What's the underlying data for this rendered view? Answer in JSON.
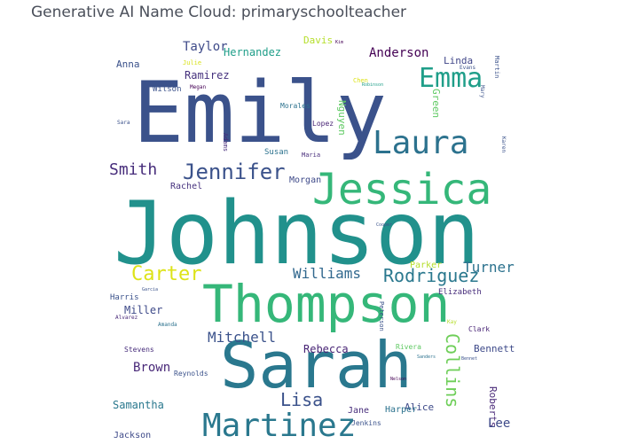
{
  "title": "Generative AI Name Cloud: primaryschoolteacher",
  "words": [
    {
      "text": "Johnson",
      "color": "#21918c"
    },
    {
      "text": "Emily",
      "color": "#3b528b"
    },
    {
      "text": "Sarah",
      "color": "#2a788e"
    },
    {
      "text": "Thompson",
      "color": "#35b779"
    },
    {
      "text": "Jessica",
      "color": "#35b779"
    },
    {
      "text": "Martinez",
      "color": "#2a788e"
    },
    {
      "text": "Laura",
      "color": "#2c728e"
    },
    {
      "text": "Emma",
      "color": "#1f9e89"
    },
    {
      "text": "Jennifer",
      "color": "#3b528b"
    },
    {
      "text": "Carter",
      "color": "#dde318"
    },
    {
      "text": "Rodriguez",
      "color": "#2a788e"
    },
    {
      "text": "Collins",
      "color": "#6ece58"
    },
    {
      "text": "Smith",
      "color": "#472d7b"
    },
    {
      "text": "Williams",
      "color": "#31688e"
    },
    {
      "text": "Mitchell",
      "color": "#3b528b"
    },
    {
      "text": "Lisa",
      "color": "#3b528b"
    },
    {
      "text": "Turner",
      "color": "#2c728e"
    },
    {
      "text": "Anderson",
      "color": "#440154"
    },
    {
      "text": "Taylor",
      "color": "#3e4a89"
    },
    {
      "text": "Hernandez",
      "color": "#1f9e89"
    },
    {
      "text": "Ramirez",
      "color": "#46327e"
    },
    {
      "text": "Brown",
      "color": "#482878"
    },
    {
      "text": "Rebecca",
      "color": "#482475"
    },
    {
      "text": "Samantha",
      "color": "#2a788e"
    },
    {
      "text": "Bennett",
      "color": "#3e4a89"
    },
    {
      "text": "Miller",
      "color": "#3e4a89"
    },
    {
      "text": "Anna",
      "color": "#3b528b"
    },
    {
      "text": "Linda",
      "color": "#404688"
    },
    {
      "text": "Davis",
      "color": "#b5de2b"
    },
    {
      "text": "Nguyen",
      "color": "#5ec962"
    },
    {
      "text": "Green",
      "color": "#5ec962"
    },
    {
      "text": "Roberts",
      "color": "#482878"
    },
    {
      "text": "Lee",
      "color": "#3e4a89"
    },
    {
      "text": "Alice",
      "color": "#3e4a89"
    },
    {
      "text": "Jane",
      "color": "#472d7b"
    },
    {
      "text": "Harper",
      "color": "#2c728e"
    },
    {
      "text": "Jackson",
      "color": "#3e4a89"
    },
    {
      "text": "Parker",
      "color": "#b5de2b"
    },
    {
      "text": "Morgan",
      "color": "#3e4a89"
    },
    {
      "text": "Elizabeth",
      "color": "#472d7b"
    },
    {
      "text": "Rachel",
      "color": "#46327e"
    },
    {
      "text": "Wilson",
      "color": "#3b528b"
    },
    {
      "text": "Susan",
      "color": "#2c728e"
    },
    {
      "text": "Lopez",
      "color": "#482475"
    },
    {
      "text": "Morales",
      "color": "#2c728e"
    },
    {
      "text": "Harris",
      "color": "#3b528b"
    },
    {
      "text": "Stevens",
      "color": "#472d7b"
    },
    {
      "text": "Reynolds",
      "color": "#3b528b"
    },
    {
      "text": "Rivera",
      "color": "#5ec962"
    },
    {
      "text": "Clark",
      "color": "#482475"
    },
    {
      "text": "Jenkins",
      "color": "#3b528b"
    },
    {
      "text": "Julie",
      "color": "#d8e219"
    },
    {
      "text": "Chen",
      "color": "#dde318"
    },
    {
      "text": "Megan",
      "color": "#440154"
    },
    {
      "text": "Sara",
      "color": "#3b528b"
    },
    {
      "text": "Adams",
      "color": "#472d7b"
    },
    {
      "text": "Maria",
      "color": "#472d7b"
    },
    {
      "text": "Karen",
      "color": "#3b528b"
    },
    {
      "text": "Amanda",
      "color": "#2c728e"
    },
    {
      "text": "Alvarez",
      "color": "#482878"
    },
    {
      "text": "Peterson",
      "color": "#3b528b"
    },
    {
      "text": "Martin",
      "color": "#3b528b"
    },
    {
      "text": "Evans",
      "color": "#3b528b"
    },
    {
      "text": "Kim",
      "color": "#440154"
    },
    {
      "text": "Robinson",
      "color": "#1f9e89"
    },
    {
      "text": "Mary",
      "color": "#3b528b"
    },
    {
      "text": "Cooper",
      "color": "#3b528b"
    },
    {
      "text": "Kay",
      "color": "#b5de2b"
    },
    {
      "text": "Sanders",
      "color": "#2c728e"
    },
    {
      "text": "Bennet",
      "color": "#3b528b"
    },
    {
      "text": "Garcia",
      "color": "#3b528b"
    },
    {
      "text": "Nelson",
      "color": "#440154"
    }
  ]
}
